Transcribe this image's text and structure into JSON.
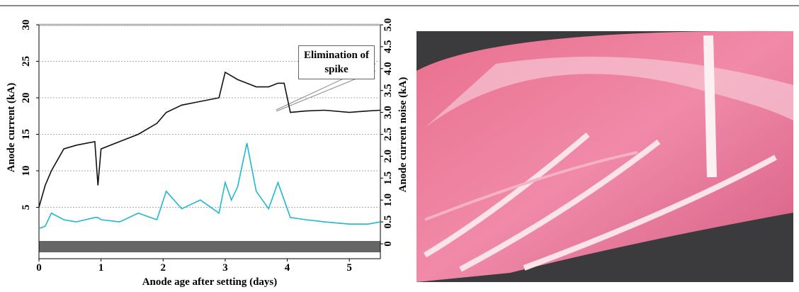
{
  "chart_data": {
    "type": "line",
    "ylabel": "Anode current (kA)",
    "y2label": "Anode current noise (kA)",
    "xlabel": "Anode age after setting (days)",
    "annotation": "Elimination of spike",
    "x": [
      0,
      0.1,
      0.2,
      0.4,
      0.6,
      0.9,
      0.95,
      1.0,
      1.3,
      1.6,
      1.9,
      2.05,
      2.3,
      2.6,
      2.9,
      3.0,
      3.1,
      3.2,
      3.35,
      3.5,
      3.7,
      3.85,
      3.95,
      4.05,
      4.3,
      4.6,
      5.0,
      5.3,
      5.5
    ],
    "series": [
      {
        "color": "#111111",
        "axis": "y",
        "values": [
          5,
          8,
          10,
          13,
          13.5,
          14,
          8,
          13,
          14,
          15,
          16.5,
          18,
          19,
          19.5,
          20,
          23.5,
          23,
          22.5,
          22,
          21.5,
          21.5,
          22,
          22,
          18,
          18.2,
          18.3,
          18,
          18.2,
          18.3
        ]
      },
      {
        "color": "#1fb8d0",
        "axis": "y2",
        "values": [
          0.35,
          0.4,
          0.7,
          0.55,
          0.5,
          0.6,
          0.6,
          0.55,
          0.5,
          0.7,
          0.55,
          1.2,
          0.8,
          1.0,
          0.7,
          1.4,
          1.0,
          1.3,
          2.3,
          1.2,
          0.8,
          1.4,
          1.0,
          0.6,
          0.55,
          0.5,
          0.45,
          0.45,
          0.5
        ]
      }
    ],
    "xlim": [
      0,
      5.5
    ],
    "xticks": [
      0,
      1,
      2,
      3,
      4,
      5
    ],
    "ylim": [
      0,
      30
    ],
    "yticks": [
      5,
      10,
      15,
      20,
      25,
      30
    ],
    "y2lim": [
      0,
      5
    ],
    "y2ticks": [
      0,
      0.5,
      {
        "value": 1,
        "label": "1.0"
      },
      1.5,
      {
        "value": 2,
        "label": "2.0"
      },
      2.5,
      {
        "value": 3,
        "label": "3.0"
      },
      3.5,
      {
        "value": 4,
        "label": "4.0"
      },
      4.5,
      {
        "value": 5,
        "label": "5.0"
      }
    ],
    "grid": true
  }
}
